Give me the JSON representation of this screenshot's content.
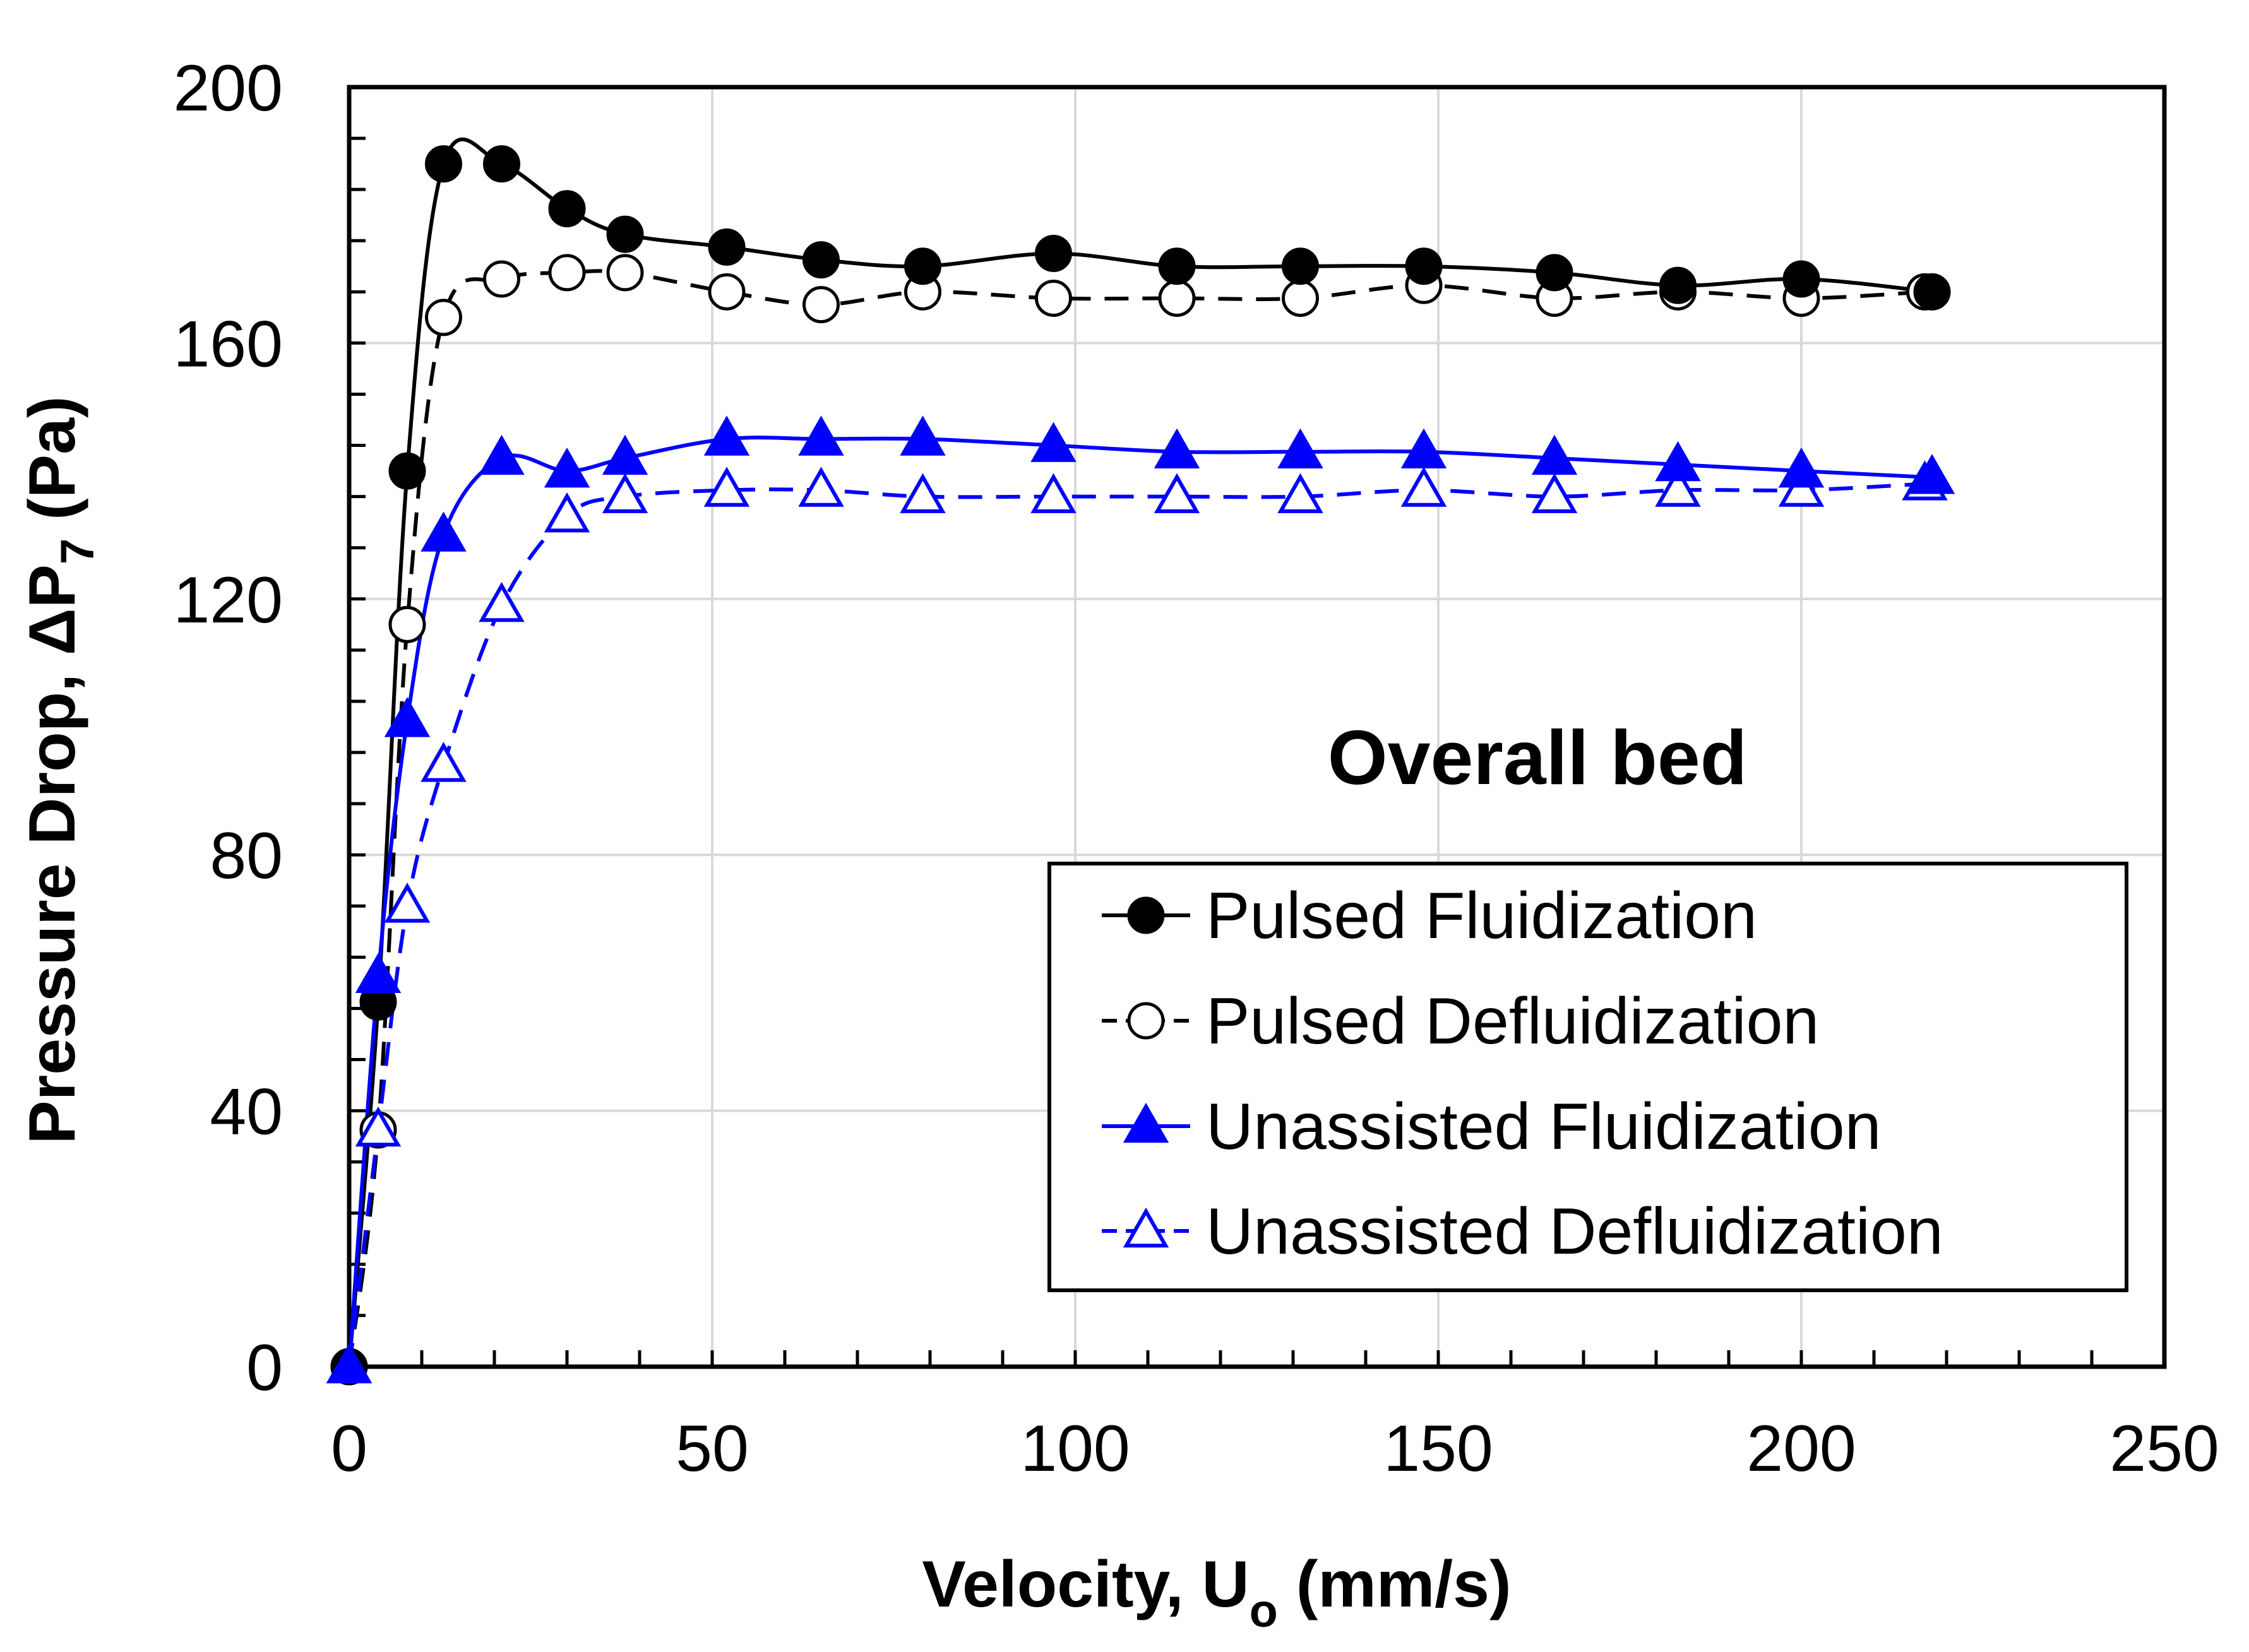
{
  "chart_data": {
    "type": "line",
    "title": "",
    "annotation": "Overall bed",
    "xlabel": "Velocity, U",
    "xlabel_sub": "o",
    "xlabel_unit": " (mm/s)",
    "ylabel": "Pressure Drop, ΔP",
    "ylabel_sub": "7",
    "ylabel_unit": "  (Pa)",
    "xlim": [
      0,
      250
    ],
    "ylim": [
      0,
      200
    ],
    "x_ticks": [
      0,
      50,
      100,
      150,
      200,
      250
    ],
    "y_ticks": [
      0,
      40,
      80,
      120,
      160,
      200
    ],
    "x_tick_labels": [
      "0",
      "50",
      "100",
      "150",
      "200",
      "250"
    ],
    "y_tick_labels": [
      "0",
      "40",
      "80",
      "120",
      "160",
      "200"
    ],
    "grid": true,
    "legend_position": "bottom-right",
    "series": [
      {
        "name": "Pulsed Fluidization",
        "color": "#000000",
        "marker": "circle",
        "filled": true,
        "dashed": false,
        "x": [
          0,
          4,
          8,
          13,
          21,
          30,
          38,
          52,
          65,
          79,
          97,
          114,
          131,
          148,
          166,
          183,
          200,
          218
        ],
        "y": [
          0,
          57,
          140,
          188,
          188,
          181,
          177,
          175,
          173,
          172,
          174,
          172,
          172,
          172,
          171,
          169,
          170,
          168
        ]
      },
      {
        "name": "Pulsed Defluidization",
        "color": "#000000",
        "marker": "circle",
        "filled": false,
        "dashed": true,
        "x": [
          0,
          4,
          8,
          13,
          21,
          30,
          38,
          52,
          65,
          79,
          97,
          114,
          131,
          148,
          166,
          183,
          200,
          217
        ],
        "y": [
          0,
          37,
          116,
          164,
          170,
          171,
          171,
          168,
          166,
          168,
          167,
          167,
          167,
          169,
          167,
          168,
          167,
          168
        ]
      },
      {
        "name": "Unassisted Fluidization",
        "color": "#0000ff",
        "marker": "triangle",
        "filled": true,
        "dashed": false,
        "x": [
          0,
          4,
          8,
          13,
          21,
          30,
          38,
          52,
          65,
          79,
          97,
          114,
          131,
          148,
          166,
          183,
          200,
          218
        ],
        "y": [
          0,
          61,
          101,
          130,
          142,
          140,
          142,
          145,
          145,
          145,
          144,
          143,
          143,
          143,
          142,
          141,
          140,
          139
        ]
      },
      {
        "name": "Unassisted Defluidization",
        "color": "#0000ff",
        "marker": "triangle",
        "filled": false,
        "dashed": true,
        "x": [
          0,
          4,
          8,
          13,
          21,
          30,
          38,
          52,
          65,
          79,
          97,
          114,
          131,
          148,
          166,
          183,
          200,
          217
        ],
        "y": [
          0,
          37,
          72,
          94,
          119,
          133,
          136,
          137,
          137,
          136,
          136,
          136,
          136,
          137,
          136,
          137,
          137,
          138
        ]
      }
    ]
  }
}
